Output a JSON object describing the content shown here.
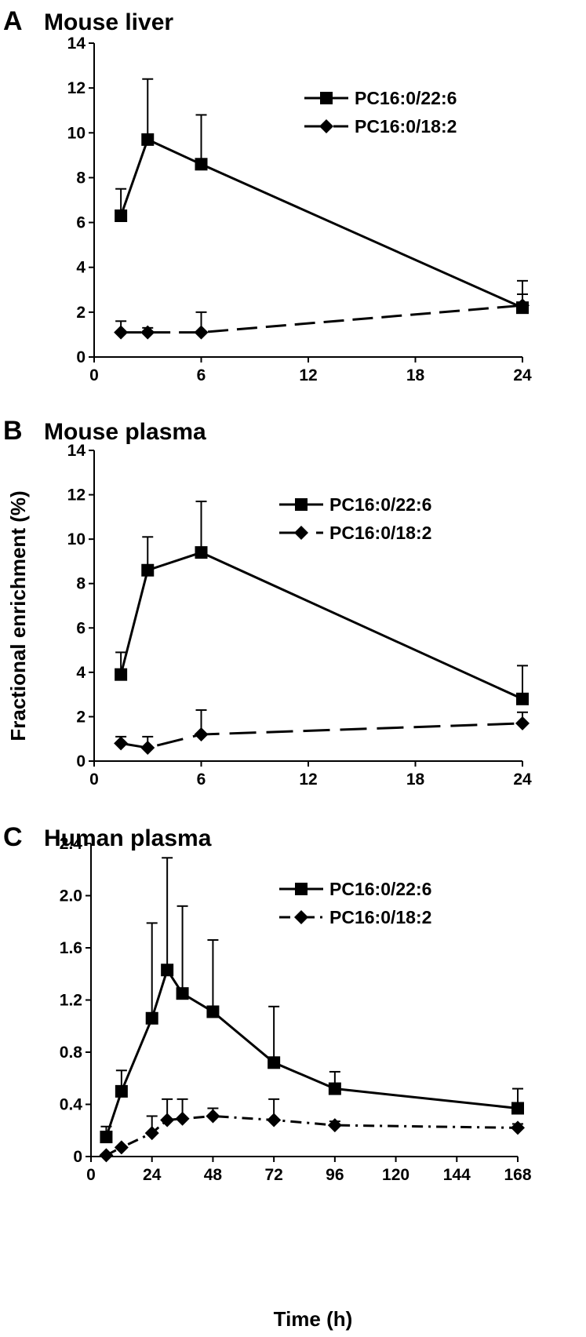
{
  "figure": {
    "ylabel": "Fractional enrichment (%)",
    "xlabel": "Time (h)"
  },
  "chart_data": [
    {
      "type": "line",
      "panel": "A",
      "title": "Mouse liver",
      "xlim": [
        0,
        24
      ],
      "xticks": [
        0,
        6,
        12,
        18,
        24
      ],
      "xtick_labels": [
        "0",
        "6",
        "12",
        "18",
        "24"
      ],
      "ylim": [
        0,
        14
      ],
      "yticks": [
        0,
        2,
        4,
        6,
        8,
        10,
        12,
        14
      ],
      "ytick_labels": [
        "0",
        "2",
        "4",
        "6",
        "8",
        "10",
        "12",
        "14"
      ],
      "legend_position": "top-right",
      "series": [
        {
          "name": "PC16:0/22:6",
          "marker": "square",
          "line": "solid",
          "x": [
            1.5,
            3,
            6,
            24
          ],
          "y": [
            6.3,
            9.7,
            8.6,
            2.2
          ],
          "err": [
            1.2,
            2.7,
            2.2,
            1.2
          ]
        },
        {
          "name": "PC16:0/18:2",
          "marker": "diamond",
          "line": "dashed",
          "x": [
            1.5,
            3,
            6,
            24
          ],
          "y": [
            1.1,
            1.1,
            1.1,
            2.3
          ],
          "err": [
            0.5,
            0.2,
            0.9,
            0.5
          ]
        }
      ]
    },
    {
      "type": "line",
      "panel": "B",
      "title": "Mouse plasma",
      "xlim": [
        0,
        24
      ],
      "xticks": [
        0,
        6,
        12,
        18,
        24
      ],
      "xtick_labels": [
        "0",
        "6",
        "12",
        "18",
        "24"
      ],
      "ylim": [
        0,
        14
      ],
      "yticks": [
        0,
        2,
        4,
        6,
        8,
        10,
        12,
        14
      ],
      "ytick_labels": [
        "0",
        "2",
        "4",
        "6",
        "8",
        "10",
        "12",
        "14"
      ],
      "legend_position": "top-right",
      "series": [
        {
          "name": "PC16:0/22:6",
          "marker": "square",
          "line": "solid",
          "x": [
            1.5,
            3,
            6,
            24
          ],
          "y": [
            3.9,
            8.6,
            9.4,
            2.8
          ],
          "err": [
            1.0,
            1.5,
            2.3,
            1.5
          ]
        },
        {
          "name": "PC16:0/18:2",
          "marker": "diamond",
          "line": "long-dashed",
          "x": [
            1.5,
            3,
            6,
            24
          ],
          "y": [
            0.8,
            0.6,
            1.2,
            1.7
          ],
          "err": [
            0.3,
            0.5,
            1.1,
            0.5
          ]
        }
      ]
    },
    {
      "type": "line",
      "panel": "C",
      "title": "Human plasma",
      "xlim": [
        0,
        168
      ],
      "xticks": [
        0,
        24,
        48,
        72,
        96,
        120,
        144,
        168
      ],
      "xtick_labels": [
        "0",
        "24",
        "48",
        "72",
        "96",
        "120",
        "144",
        "168"
      ],
      "ylim": [
        0,
        2.4
      ],
      "yticks": [
        0,
        0.4,
        0.8,
        1.2,
        1.6,
        2.0,
        2.4
      ],
      "ytick_labels": [
        "0",
        "0.4",
        "0.8",
        "1.2",
        "1.6",
        "2.0",
        "2.4"
      ],
      "legend_position": "top-right",
      "series": [
        {
          "name": "PC16:0/22:6",
          "marker": "square",
          "line": "solid",
          "x": [
            6,
            12,
            24,
            30,
            36,
            48,
            72,
            96,
            168
          ],
          "y": [
            0.15,
            0.5,
            1.06,
            1.43,
            1.25,
            1.11,
            0.72,
            0.52,
            0.37
          ],
          "err": [
            0.08,
            0.16,
            0.73,
            0.86,
            0.67,
            0.55,
            0.43,
            0.13,
            0.15
          ]
        },
        {
          "name": "PC16:0/18:2",
          "marker": "diamond",
          "line": "dash-dot",
          "x": [
            6,
            12,
            24,
            30,
            36,
            48,
            72,
            96,
            168
          ],
          "y": [
            0.01,
            0.07,
            0.18,
            0.28,
            0.29,
            0.31,
            0.28,
            0.24,
            0.22
          ],
          "err": [
            0.0,
            0.0,
            0.13,
            0.16,
            0.15,
            0.06,
            0.16,
            0.03,
            0.03
          ]
        }
      ]
    }
  ]
}
